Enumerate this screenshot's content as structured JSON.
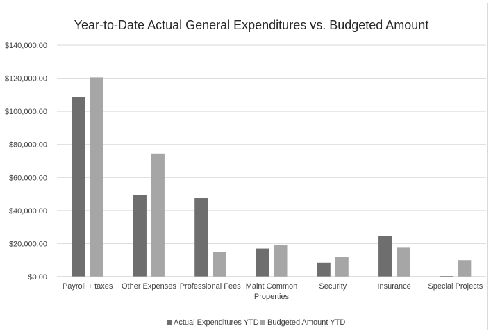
{
  "chart_data": {
    "type": "bar",
    "title": "Year-to-Date Actual General Expenditures vs. Budgeted Amount",
    "xlabel": "",
    "ylabel": "",
    "categories": [
      [
        "Payroll  + taxes"
      ],
      [
        "Other Expenses"
      ],
      [
        "Professional Fees"
      ],
      [
        "Maint Common",
        "Properties"
      ],
      [
        "Security"
      ],
      [
        "Insurance"
      ],
      [
        "Special Projects"
      ]
    ],
    "series": [
      {
        "name": "Actual Expenditures YTD",
        "color": "#6e6e6e",
        "values": [
          108500,
          49500,
          47500,
          17000,
          8500,
          24500,
          0
        ]
      },
      {
        "name": "Budgeted Amount YTD",
        "color": "#a6a6a6",
        "values": [
          120500,
          74500,
          15000,
          19000,
          12000,
          17500,
          10000
        ]
      }
    ],
    "ylim": [
      0,
      140000
    ],
    "yticks": [
      {
        "value": 0,
        "label": "$0.00"
      },
      {
        "value": 20000,
        "label": "$20,000.00"
      },
      {
        "value": 40000,
        "label": "$40,000.00"
      },
      {
        "value": 60000,
        "label": "$60,000.00"
      },
      {
        "value": 80000,
        "label": "$80,000.00"
      },
      {
        "value": 100000,
        "label": "$100,000.00"
      },
      {
        "value": 120000,
        "label": "$120,000.00"
      },
      {
        "value": 140000,
        "label": "$140,000.00"
      }
    ],
    "grid": true,
    "gridline_color": "#d9d9d9",
    "legend_position": "bottom"
  }
}
